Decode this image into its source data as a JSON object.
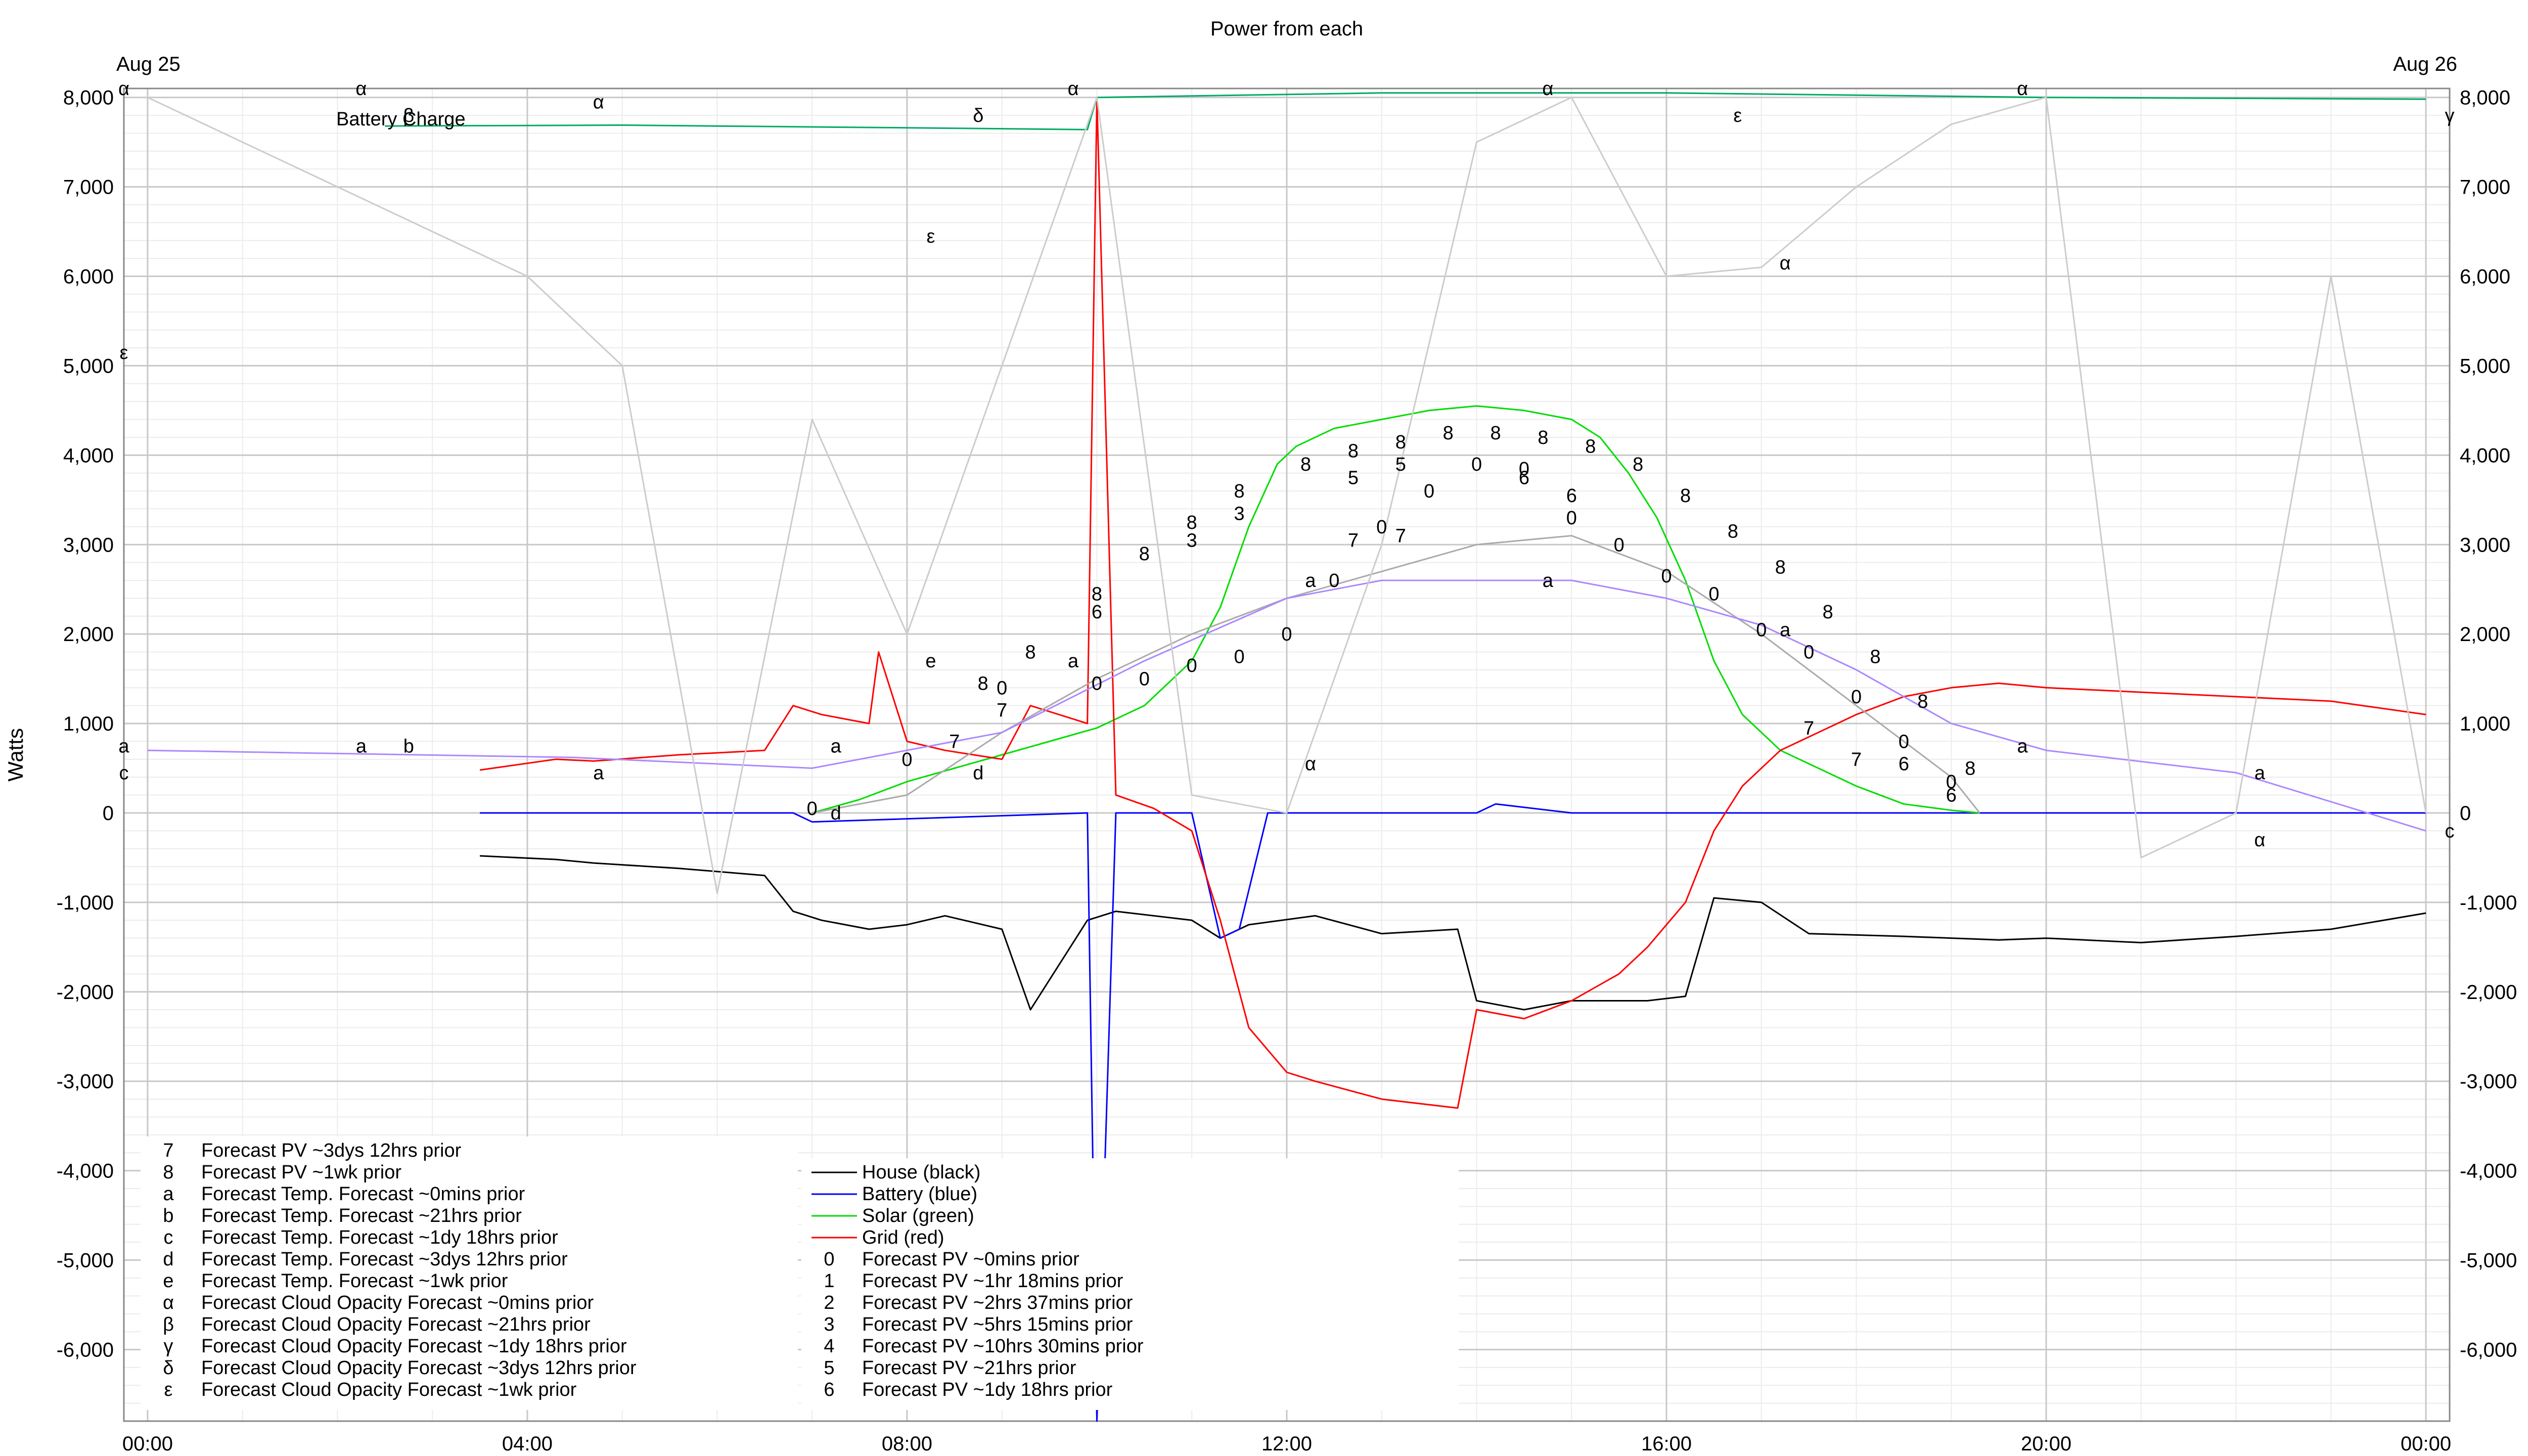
{
  "chart_data": {
    "type": "line",
    "title": "Power from each",
    "ylabel": "Watts",
    "ylim": [
      -6800,
      8100
    ],
    "xlim": [
      -0.25,
      24.25
    ],
    "y_ticks": [
      8000,
      7000,
      6000,
      5000,
      4000,
      3000,
      2000,
      1000,
      0,
      -1000,
      -2000,
      -3000,
      -4000,
      -5000,
      -6000
    ],
    "y_tick_labels": [
      "8,000",
      "7,000",
      "6,000",
      "5,000",
      "4,000",
      "3,000",
      "2,000",
      "1,000",
      "0",
      "-1,000",
      "-2,000",
      "-3,000",
      "-4,000",
      "-5,000",
      "-6,000"
    ],
    "x_ticks": [
      0,
      4,
      8,
      12,
      16,
      20,
      24
    ],
    "x_tick_labels": [
      "00:00",
      "04:00",
      "08:00",
      "12:00",
      "16:00",
      "20:00",
      "00:00"
    ],
    "date_left": "Aug 25",
    "date_right": "Aug 26",
    "grid": true,
    "annotation": "Battery Charge",
    "colors": {
      "house": "#000000",
      "battery": "#0000ff",
      "solar": "#00dd00",
      "grid": "#ff0000",
      "battery_charge": "#00aa66",
      "forecast_pv": "#aaaaaa",
      "forecast_temp": "#aa88ff",
      "forecast_cloud": "#cccccc"
    },
    "legend_left": [
      {
        "sym": "7",
        "label": "Forecast PV ~3dys 12hrs prior"
      },
      {
        "sym": "8",
        "label": "Forecast PV ~1wk prior"
      },
      {
        "sym": "a",
        "label": "Forecast Temp. Forecast ~0mins prior"
      },
      {
        "sym": "b",
        "label": "Forecast Temp. Forecast ~21hrs prior"
      },
      {
        "sym": "c",
        "label": "Forecast Temp. Forecast ~1dy 18hrs prior"
      },
      {
        "sym": "d",
        "label": "Forecast Temp. Forecast ~3dys 12hrs prior"
      },
      {
        "sym": "e",
        "label": "Forecast Temp. Forecast ~1wk prior"
      },
      {
        "sym": "α",
        "label": "Forecast Cloud Opacity Forecast ~0mins prior"
      },
      {
        "sym": "β",
        "label": "Forecast Cloud Opacity Forecast ~21hrs prior"
      },
      {
        "sym": "γ",
        "label": "Forecast Cloud Opacity Forecast ~1dy 18hrs prior"
      },
      {
        "sym": "δ",
        "label": "Forecast Cloud Opacity Forecast ~3dys 12hrs prior"
      },
      {
        "sym": "ε",
        "label": "Forecast Cloud Opacity Forecast ~1wk prior"
      }
    ],
    "legend_right": [
      {
        "sym": "",
        "label": "House (black)",
        "color": "#000000"
      },
      {
        "sym": "",
        "label": "Battery (blue)",
        "color": "#0000ff"
      },
      {
        "sym": "",
        "label": "Solar (green)",
        "color": "#00dd00"
      },
      {
        "sym": "",
        "label": "Grid (red)",
        "color": "#ff0000"
      },
      {
        "sym": "0",
        "label": "Forecast PV ~0mins prior"
      },
      {
        "sym": "1",
        "label": "Forecast PV ~1hr 18mins prior"
      },
      {
        "sym": "2",
        "label": "Forecast PV ~2hrs 37mins prior"
      },
      {
        "sym": "3",
        "label": "Forecast PV ~5hrs 15mins prior"
      },
      {
        "sym": "4",
        "label": "Forecast PV ~10hrs 30mins prior"
      },
      {
        "sym": "5",
        "label": "Forecast PV ~21hrs prior"
      },
      {
        "sym": "6",
        "label": "Forecast PV ~1dy 18hrs prior"
      }
    ],
    "series": [
      {
        "name": "House (black)",
        "color": "#000000",
        "x": [
          3.5,
          4.3,
          4.7,
          5.6,
          6.5,
          6.8,
          7.1,
          7.6,
          8.0,
          8.4,
          9.0,
          9.3,
          9.9,
          10.2,
          11.0,
          11.3,
          11.6,
          12.3,
          13.0,
          13.8,
          14.0,
          14.5,
          15.0,
          15.8,
          16.2,
          16.5,
          17.0,
          17.5,
          18.5,
          19.5,
          20.0,
          21.0,
          22.0,
          23.0,
          24.0
        ],
        "y": [
          -480,
          -520,
          -560,
          -620,
          -700,
          -1100,
          -1200,
          -1300,
          -1250,
          -1150,
          -1300,
          -2200,
          -1200,
          -1100,
          -1200,
          -1400,
          -1250,
          -1150,
          -1350,
          -1300,
          -2100,
          -2200,
          -2100,
          -2100,
          -2050,
          -950,
          -1000,
          -1350,
          -1380,
          -1420,
          -1400,
          -1450,
          -1380,
          -1300,
          -1120
        ]
      },
      {
        "name": "Battery (blue)",
        "color": "#0000ff",
        "x": [
          3.5,
          6.8,
          7.0,
          9.9,
          10.0,
          10.2,
          11.0,
          11.3,
          11.5,
          11.8,
          12.0,
          13.0,
          14.0,
          14.2,
          15.0,
          16.0,
          20.0,
          24.0
        ],
        "y": [
          0,
          0,
          -100,
          0,
          -6800,
          0,
          0,
          -1400,
          -1300,
          0,
          0,
          0,
          0,
          100,
          0,
          0,
          0,
          0
        ]
      },
      {
        "name": "Solar (green)",
        "color": "#00dd00",
        "x": [
          7.0,
          7.5,
          8.0,
          8.5,
          9.0,
          9.5,
          10.0,
          10.5,
          11.0,
          11.3,
          11.6,
          11.9,
          12.1,
          12.5,
          13.0,
          13.5,
          14.0,
          14.5,
          15.0,
          15.3,
          15.6,
          15.9,
          16.2,
          16.5,
          16.8,
          17.2,
          17.6,
          18.0,
          18.5,
          19.0,
          19.3
        ],
        "y": [
          0,
          150,
          350,
          500,
          650,
          800,
          950,
          1200,
          1700,
          2300,
          3200,
          3900,
          4100,
          4300,
          4400,
          4500,
          4550,
          4500,
          4400,
          4200,
          3800,
          3300,
          2600,
          1700,
          1100,
          700,
          500,
          300,
          100,
          30,
          0
        ]
      },
      {
        "name": "Grid (red)",
        "color": "#ff0000",
        "x": [
          3.5,
          4.3,
          4.7,
          5.6,
          6.5,
          6.8,
          7.1,
          7.6,
          7.7,
          8.0,
          8.4,
          9.0,
          9.3,
          9.9,
          10.0,
          10.2,
          10.6,
          11.0,
          11.3,
          11.6,
          12.0,
          12.3,
          13.0,
          13.8,
          14.0,
          14.5,
          15.0,
          15.5,
          15.8,
          16.2,
          16.5,
          16.8,
          17.2,
          17.6,
          18.0,
          18.5,
          19.0,
          19.5,
          20.0,
          21.0,
          22.0,
          23.0,
          24.0
        ],
        "y": [
          480,
          600,
          580,
          650,
          700,
          1200,
          1100,
          1000,
          1800,
          800,
          700,
          600,
          1200,
          1000,
          8000,
          200,
          50,
          -200,
          -1200,
          -2400,
          -2900,
          -3000,
          -3200,
          -3300,
          -2200,
          -2300,
          -2100,
          -1800,
          -1500,
          -1000,
          -200,
          300,
          700,
          900,
          1100,
          1300,
          1400,
          1450,
          1400,
          1350,
          1300,
          1250,
          1100
        ]
      },
      {
        "name": "Battery Charge",
        "color": "#00aa66",
        "x": [
          2.5,
          5.0,
          9.0,
          9.9,
          10.0,
          13.0,
          16.0,
          20.0,
          24.0
        ],
        "y": [
          7680,
          7690,
          7650,
          7640,
          8000,
          8050,
          8050,
          8000,
          7980
        ]
      },
      {
        "name": "Forecast PV ~0mins prior",
        "color": "#aaaaaa",
        "x": [
          7.0,
          8.0,
          9.0,
          10.0,
          11.0,
          12.0,
          13.0,
          14.0,
          15.0,
          16.0,
          17.0,
          18.0,
          19.0,
          19.3
        ],
        "y": [
          0,
          200,
          900,
          1500,
          2000,
          2400,
          2700,
          3000,
          3100,
          2700,
          2000,
          1200,
          400,
          0
        ]
      },
      {
        "name": "Forecast Temp. Forecast ~0mins prior",
        "color": "#aa88ff",
        "x": [
          0,
          4.5,
          7.0,
          9.0,
          10.5,
          12.0,
          13.0,
          14.0,
          15.0,
          16.0,
          17.0,
          18.0,
          19.0,
          20.0,
          22.0,
          24.0
        ],
        "y": [
          700,
          620,
          500,
          900,
          1700,
          2400,
          2600,
          2600,
          2600,
          2400,
          2100,
          1600,
          1000,
          700,
          450,
          -200
        ]
      },
      {
        "name": "Forecast Cloud Opacity Forecast ~0mins prior",
        "color": "#cccccc",
        "x": [
          0,
          2.0,
          4.0,
          5.0,
          6.0,
          7.0,
          8.0,
          9.0,
          10.0,
          11.0,
          12.0,
          13.0,
          14.0,
          15.0,
          16.0,
          17.0,
          18.0,
          19.0,
          20.0,
          21.0,
          22.0,
          23.0,
          24.0
        ],
        "y": [
          8000,
          7000,
          6000,
          5000,
          -900,
          4400,
          2000,
          5000,
          8000,
          200,
          0,
          3000,
          7500,
          8000,
          6000,
          6100,
          7000,
          7700,
          8000,
          -500,
          0,
          6000,
          0
        ]
      }
    ],
    "markers": [
      {
        "t": "8",
        "x": 8.8,
        "y": 1450
      },
      {
        "t": "8",
        "x": 9.3,
        "y": 1800
      },
      {
        "t": "8",
        "x": 10.0,
        "y": 2450
      },
      {
        "t": "8",
        "x": 10.5,
        "y": 2900
      },
      {
        "t": "8",
        "x": 11.0,
        "y": 3250
      },
      {
        "t": "8",
        "x": 11.5,
        "y": 3600
      },
      {
        "t": "8",
        "x": 12.2,
        "y": 3900
      },
      {
        "t": "8",
        "x": 12.7,
        "y": 4050
      },
      {
        "t": "8",
        "x": 13.2,
        "y": 4150
      },
      {
        "t": "8",
        "x": 13.7,
        "y": 4250
      },
      {
        "t": "8",
        "x": 14.2,
        "y": 4250
      },
      {
        "t": "8",
        "x": 14.7,
        "y": 4200
      },
      {
        "t": "8",
        "x": 15.2,
        "y": 4100
      },
      {
        "t": "8",
        "x": 15.7,
        "y": 3900
      },
      {
        "t": "8",
        "x": 16.2,
        "y": 3550
      },
      {
        "t": "8",
        "x": 16.7,
        "y": 3150
      },
      {
        "t": "8",
        "x": 17.2,
        "y": 2750
      },
      {
        "t": "8",
        "x": 17.7,
        "y": 2250
      },
      {
        "t": "8",
        "x": 18.2,
        "y": 1750
      },
      {
        "t": "8",
        "x": 18.7,
        "y": 1250
      },
      {
        "t": "8",
        "x": 19.2,
        "y": 500
      },
      {
        "t": "0",
        "x": 7.0,
        "y": 50
      },
      {
        "t": "0",
        "x": 8.0,
        "y": 600
      },
      {
        "t": "0",
        "x": 9.0,
        "y": 1400
      },
      {
        "t": "0",
        "x": 10.0,
        "y": 1450
      },
      {
        "t": "0",
        "x": 10.5,
        "y": 1500
      },
      {
        "t": "0",
        "x": 11.0,
        "y": 1650
      },
      {
        "t": "0",
        "x": 11.5,
        "y": 1750
      },
      {
        "t": "0",
        "x": 12.0,
        "y": 2000
      },
      {
        "t": "0",
        "x": 12.5,
        "y": 2600
      },
      {
        "t": "0",
        "x": 13.0,
        "y": 3200
      },
      {
        "t": "0",
        "x": 13.5,
        "y": 3600
      },
      {
        "t": "0",
        "x": 14.0,
        "y": 3900
      },
      {
        "t": "0",
        "x": 14.5,
        "y": 3850
      },
      {
        "t": "0",
        "x": 15.0,
        "y": 3300
      },
      {
        "t": "0",
        "x": 15.5,
        "y": 3000
      },
      {
        "t": "0",
        "x": 16.0,
        "y": 2650
      },
      {
        "t": "0",
        "x": 16.5,
        "y": 2450
      },
      {
        "t": "0",
        "x": 17.0,
        "y": 2050
      },
      {
        "t": "0",
        "x": 17.5,
        "y": 1800
      },
      {
        "t": "0",
        "x": 18.0,
        "y": 1300
      },
      {
        "t": "0",
        "x": 18.5,
        "y": 800
      },
      {
        "t": "0",
        "x": 19.0,
        "y": 350
      },
      {
        "t": "7",
        "x": 8.5,
        "y": 800
      },
      {
        "t": "7",
        "x": 9.0,
        "y": 1150
      },
      {
        "t": "7",
        "x": 12.7,
        "y": 3050
      },
      {
        "t": "7",
        "x": 13.2,
        "y": 3100
      },
      {
        "t": "7",
        "x": 17.5,
        "y": 950
      },
      {
        "t": "7",
        "x": 18.0,
        "y": 600
      },
      {
        "t": "6",
        "x": 10.0,
        "y": 2250
      },
      {
        "t": "6",
        "x": 14.5,
        "y": 3750
      },
      {
        "t": "6",
        "x": 15.0,
        "y": 3550
      },
      {
        "t": "6",
        "x": 18.5,
        "y": 550
      },
      {
        "t": "6",
        "x": 19.0,
        "y": 200
      },
      {
        "t": "3",
        "x": 11.0,
        "y": 3050
      },
      {
        "t": "3",
        "x": 11.5,
        "y": 3350
      },
      {
        "t": "5",
        "x": 12.7,
        "y": 3750
      },
      {
        "t": "5",
        "x": 13.2,
        "y": 3900
      },
      {
        "t": "a",
        "x": -0.25,
        "y": 750
      },
      {
        "t": "a",
        "x": 2.25,
        "y": 750
      },
      {
        "t": "a",
        "x": 4.75,
        "y": 450
      },
      {
        "t": "a",
        "x": 7.25,
        "y": 750
      },
      {
        "t": "a",
        "x": 9.75,
        "y": 1700
      },
      {
        "t": "a",
        "x": 12.25,
        "y": 2600
      },
      {
        "t": "a",
        "x": 14.75,
        "y": 2600
      },
      {
        "t": "a",
        "x": 17.25,
        "y": 2050
      },
      {
        "t": "a",
        "x": 19.75,
        "y": 750
      },
      {
        "t": "a",
        "x": 22.25,
        "y": 450
      },
      {
        "t": "α",
        "x": 22.25,
        "y": -300
      },
      {
        "t": "b",
        "x": 2.75,
        "y": 750
      },
      {
        "t": "c",
        "x": -0.25,
        "y": 450
      },
      {
        "t": "c",
        "x": 24.25,
        "y": -200
      },
      {
        "t": "d",
        "x": 8.75,
        "y": 450
      },
      {
        "t": "d",
        "x": 7.25,
        "y": 0
      },
      {
        "t": "e",
        "x": 8.25,
        "y": 1700
      },
      {
        "t": "α",
        "x": -0.25,
        "y": 8100
      },
      {
        "t": "α",
        "x": 2.25,
        "y": 8100
      },
      {
        "t": "α",
        "x": 4.75,
        "y": 7950
      },
      {
        "t": "α",
        "x": 9.75,
        "y": 8100
      },
      {
        "t": "α",
        "x": 14.75,
        "y": 8100
      },
      {
        "t": "α",
        "x": 19.75,
        "y": 8100
      },
      {
        "t": "α",
        "x": 17.25,
        "y": 6150
      },
      {
        "t": "α",
        "x": 12.25,
        "y": 550
      },
      {
        "t": "β",
        "x": 2.75,
        "y": 7800
      },
      {
        "t": "γ",
        "x": 24.25,
        "y": 7800
      },
      {
        "t": "δ",
        "x": 8.75,
        "y": 7800
      },
      {
        "t": "ε",
        "x": -0.25,
        "y": 5150
      },
      {
        "t": "ε",
        "x": 8.25,
        "y": 6450
      },
      {
        "t": "ε",
        "x": 16.75,
        "y": 7800
      }
    ]
  }
}
